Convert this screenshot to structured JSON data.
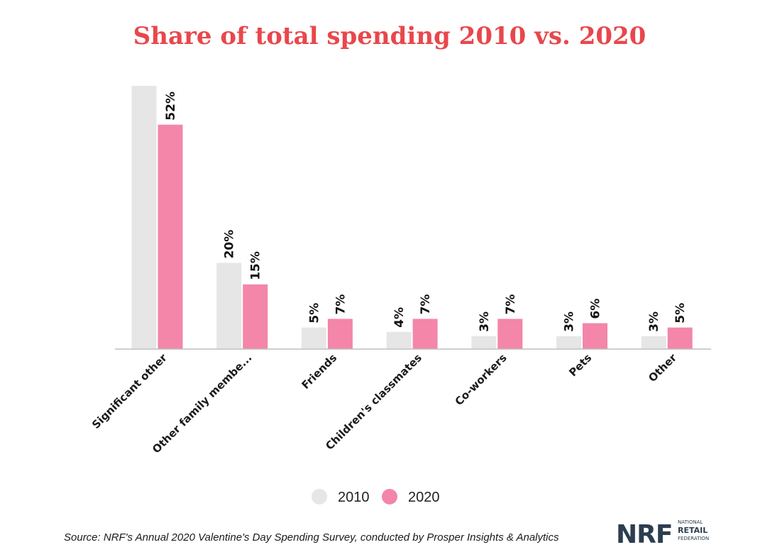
{
  "chart_data": {
    "type": "bar",
    "title": "Share of total spending 2010 vs. 2020",
    "categories": [
      "Significant other",
      "Other family membe...",
      "Friends",
      "Children's classmates",
      "Co-workers",
      "Pets",
      "Other"
    ],
    "series": [
      {
        "name": "2010",
        "values": [
          61,
          20,
          5,
          4,
          3,
          3,
          3
        ],
        "labels": [
          "",
          "20%",
          "5%",
          "4%",
          "3%",
          "3%",
          "3%"
        ],
        "color": "#e6e6e6"
      },
      {
        "name": "2020",
        "values": [
          52,
          15,
          7,
          7,
          7,
          6,
          5
        ],
        "labels": [
          "52%",
          "15%",
          "7%",
          "7%",
          "7%",
          "6%",
          "5%"
        ],
        "color": "#f386a9"
      }
    ],
    "ylim": [
      0,
      61
    ],
    "grid": false,
    "legend_position": "bottom"
  },
  "source": "Source: NRF's Annual 2020 Valentine's Day Spending Survey, conducted by Prosper Insights & Analytics",
  "logo": {
    "main": "NRF",
    "line1": "NATIONAL",
    "line2": "RETAIL",
    "line3": "FEDERATION"
  }
}
